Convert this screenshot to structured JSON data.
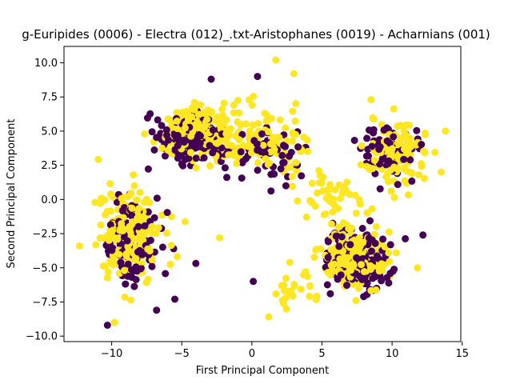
{
  "chart_data": {
    "type": "scatter",
    "title": "g-Euripides (0006) - Electra (012)_.txt-Aristophanes (0019) - Acharnians (001)",
    "xlabel": "First Principal Component",
    "ylabel": "Second Principal Component",
    "xlim": [
      -13.4,
      14.9
    ],
    "ylim": [
      -10.4,
      11.2
    ],
    "xticks": [
      "−10",
      "−5",
      "0",
      "5",
      "10",
      "15"
    ],
    "yticks": [
      "−10.0",
      "−7.5",
      "−5.0",
      "−2.5",
      "0.0",
      "2.5",
      "5.0",
      "7.5",
      "10.0"
    ],
    "grid": false,
    "legend": "none",
    "colors": {
      "class_0": "#440154",
      "class_1": "#fde725"
    },
    "clusters": [
      {
        "class": 0,
        "center": [
          -8.5,
          -3.0
        ],
        "spread": [
          2.0,
          3.0
        ],
        "count": 120
      },
      {
        "class": 1,
        "center": [
          -8.8,
          -2.5
        ],
        "spread": [
          2.0,
          3.2
        ],
        "count": 190
      },
      {
        "class": 0,
        "center": [
          -4.5,
          4.3
        ],
        "spread": [
          2.2,
          1.6
        ],
        "count": 150
      },
      {
        "class": 1,
        "center": [
          -3.5,
          4.8
        ],
        "spread": [
          2.6,
          1.7
        ],
        "count": 220
      },
      {
        "class": 0,
        "center": [
          1.0,
          3.5
        ],
        "spread": [
          2.5,
          2.0
        ],
        "count": 60
      },
      {
        "class": 1,
        "center": [
          1.5,
          4.0
        ],
        "spread": [
          2.8,
          2.2
        ],
        "count": 90
      },
      {
        "class": 0,
        "center": [
          7.5,
          -4.5
        ],
        "spread": [
          2.0,
          2.0
        ],
        "count": 180
      },
      {
        "class": 1,
        "center": [
          7.3,
          -4.3
        ],
        "spread": [
          2.0,
          2.0
        ],
        "count": 230
      },
      {
        "class": 0,
        "center": [
          10.0,
          3.5
        ],
        "spread": [
          2.0,
          2.0
        ],
        "count": 60
      },
      {
        "class": 1,
        "center": [
          10.3,
          3.3
        ],
        "spread": [
          2.0,
          2.2
        ],
        "count": 110
      },
      {
        "class": 1,
        "center": [
          6.0,
          0.0
        ],
        "spread": [
          2.0,
          1.5
        ],
        "count": 40
      },
      {
        "class": 1,
        "center": [
          3.0,
          -6.5
        ],
        "spread": [
          1.2,
          1.2
        ],
        "count": 25
      }
    ],
    "points": [
      {
        "x": 1.7,
        "y": 10.2,
        "class": 1
      },
      {
        "x": 3.0,
        "y": 9.2,
        "class": 1
      },
      {
        "x": -2.9,
        "y": 8.8,
        "class": 0
      },
      {
        "x": 0.4,
        "y": 9.0,
        "class": 0
      },
      {
        "x": 8.5,
        "y": 7.3,
        "class": 1
      },
      {
        "x": 13.8,
        "y": 5.0,
        "class": 1
      },
      {
        "x": 13.5,
        "y": 2.0,
        "class": 1
      },
      {
        "x": -12.3,
        "y": -3.4,
        "class": 1
      },
      {
        "x": -10.3,
        "y": -9.2,
        "class": 0
      },
      {
        "x": -9.8,
        "y": -9.0,
        "class": 1
      },
      {
        "x": 1.2,
        "y": -8.6,
        "class": 1
      },
      {
        "x": -5.5,
        "y": -7.3,
        "class": 0
      },
      {
        "x": 0.1,
        "y": -6.0,
        "class": 0
      },
      {
        "x": 8.9,
        "y": -6.5,
        "class": 0
      },
      {
        "x": 11.8,
        "y": -5.0,
        "class": 1
      },
      {
        "x": 12.2,
        "y": -2.6,
        "class": 0
      },
      {
        "x": -2.3,
        "y": -2.8,
        "class": 1
      },
      {
        "x": -6.8,
        "y": -8.1,
        "class": 0
      }
    ]
  }
}
